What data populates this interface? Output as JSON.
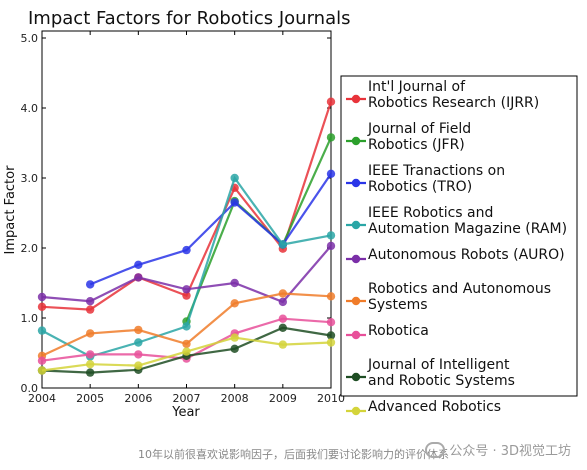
{
  "chart_data": {
    "type": "line",
    "title": "Impact Factors for Robotics Journals",
    "xlabel": "Year",
    "ylabel": "Impact Factor",
    "x": [
      2004,
      2005,
      2006,
      2007,
      2008,
      2009,
      2010
    ],
    "xlim": [
      2004,
      2010
    ],
    "ylim": [
      0,
      5.1
    ],
    "yticks": [
      "0.0",
      "1.0",
      "2.0",
      "3.0",
      "4.0",
      "5.0"
    ],
    "legend_position": "right",
    "series": [
      {
        "name_lines": [
          "Int'l Journal of",
          "Robotics Research (IJRR)"
        ],
        "color": "#e8333a",
        "x": [
          2004,
          2005,
          2006,
          2007,
          2008,
          2009,
          2010
        ],
        "values": [
          1.16,
          1.12,
          1.58,
          1.32,
          2.86,
          1.99,
          4.09
        ]
      },
      {
        "name_lines": [
          "Journal of Field",
          "Robotics (JFR)"
        ],
        "color": "#2ca02c",
        "x": [
          2007,
          2008,
          2009,
          2010
        ],
        "values": [
          0.95,
          2.67,
          2.05,
          3.58
        ]
      },
      {
        "name_lines": [
          "IEEE Tranactions on",
          "Robotics (TRO)"
        ],
        "color": "#2a35e8",
        "x": [
          2005,
          2006,
          2007,
          2008,
          2009,
          2010
        ],
        "values": [
          1.48,
          1.76,
          1.97,
          2.65,
          2.05,
          3.06
        ]
      },
      {
        "name_lines": [
          "IEEE Robotics and",
          "Automation Magazine (RAM)"
        ],
        "color": "#2aa6a6",
        "x": [
          2004,
          2005,
          2006,
          2007,
          2008,
          2009,
          2010
        ],
        "values": [
          0.82,
          0.45,
          0.65,
          0.88,
          3.0,
          2.05,
          2.18
        ]
      },
      {
        "name_lines": [
          "Autonomous Robots (AURO)"
        ],
        "color": "#7b2fa8",
        "x": [
          2004,
          2005,
          2006,
          2007,
          2008,
          2009,
          2010
        ],
        "values": [
          1.3,
          1.24,
          1.58,
          1.41,
          1.5,
          1.23,
          2.03
        ]
      },
      {
        "name_lines": [
          "Robotics and Autonomous",
          "Systems"
        ],
        "color": "#f07c2a",
        "x": [
          2004,
          2005,
          2006,
          2007,
          2008,
          2009,
          2010
        ],
        "values": [
          0.46,
          0.78,
          0.83,
          0.63,
          1.21,
          1.35,
          1.31
        ]
      },
      {
        "name_lines": [
          "Robotica"
        ],
        "color": "#e8509a",
        "x": [
          2004,
          2005,
          2006,
          2007,
          2008,
          2009,
          2010
        ],
        "values": [
          0.39,
          0.48,
          0.48,
          0.42,
          0.78,
          0.99,
          0.94
        ]
      },
      {
        "name_lines": [
          "Journal of Intelligent",
          "and Robotic Systems"
        ],
        "color": "#1e4d23",
        "x": [
          2004,
          2005,
          2006,
          2007,
          2008,
          2009,
          2010
        ],
        "values": [
          0.25,
          0.22,
          0.26,
          0.46,
          0.56,
          0.86,
          0.75
        ]
      },
      {
        "name_lines": [
          "Advanced Robotics"
        ],
        "color": "#d4d43a",
        "x": [
          2004,
          2005,
          2006,
          2007,
          2008,
          2009,
          2010
        ],
        "values": [
          0.25,
          0.34,
          0.32,
          0.52,
          0.72,
          0.62,
          0.65
        ]
      }
    ]
  },
  "caption": "10年以前很喜欢说影响因子，后面我们要讨论影响力的评价体系",
  "watermark": "公众号 · 3D视觉工坊"
}
